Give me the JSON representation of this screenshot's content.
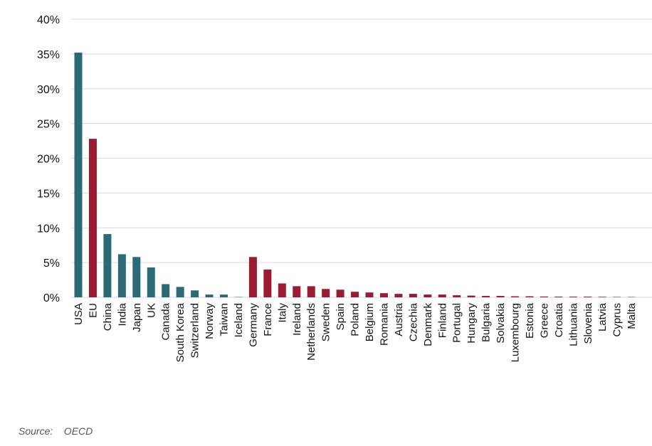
{
  "source": "Source:    OECD",
  "chart_data": {
    "type": "bar",
    "title": "",
    "xlabel": "",
    "ylabel": "",
    "ylim": [
      0,
      40
    ],
    "yticks": [
      0,
      5,
      10,
      15,
      20,
      25,
      30,
      35,
      40
    ],
    "ytick_format": "percent",
    "grid": true,
    "legend": "none",
    "colors": {
      "non_eu": "#2c6b76",
      "eu": "#9b1b30",
      "grid": "#d9d9d9"
    },
    "categories": [
      "USA",
      "EU",
      "China",
      "India",
      "Japan",
      "UK",
      "Canada",
      "South Korea",
      "Switzerland",
      "Norway",
      "Taiwan",
      "Iceland",
      "Germany",
      "France",
      "Italy",
      "Ireland",
      "Netherlands",
      "Sweden",
      "Spain",
      "Poland",
      "Belgium",
      "Romania",
      "Austria",
      "Czechia",
      "Denmark",
      "Finland",
      "Portugal",
      "Hungary",
      "Bulgaria",
      "Solvakia",
      "Luxembourg",
      "Estonia",
      "Greece",
      "Croatia",
      "Lithuania",
      "Slovenia",
      "Latvia",
      "Cyprus",
      "Malta"
    ],
    "values": [
      35.2,
      22.8,
      9.1,
      6.2,
      5.8,
      4.3,
      1.9,
      1.5,
      1.0,
      0.4,
      0.4,
      0.05,
      5.8,
      4.0,
      2.0,
      1.6,
      1.6,
      1.2,
      1.1,
      0.8,
      0.7,
      0.6,
      0.5,
      0.5,
      0.4,
      0.4,
      0.3,
      0.25,
      0.2,
      0.2,
      0.15,
      0.15,
      0.12,
      0.1,
      0.1,
      0.1,
      0.08,
      0.06,
      0.05
    ],
    "bar_groups": [
      "non_eu",
      "eu",
      "non_eu",
      "non_eu",
      "non_eu",
      "non_eu",
      "non_eu",
      "non_eu",
      "non_eu",
      "non_eu",
      "non_eu",
      "non_eu",
      "eu",
      "eu",
      "eu",
      "eu",
      "eu",
      "eu",
      "eu",
      "eu",
      "eu",
      "eu",
      "eu",
      "eu",
      "eu",
      "eu",
      "eu",
      "eu",
      "eu",
      "eu",
      "eu",
      "eu",
      "eu",
      "eu",
      "eu",
      "eu",
      "eu",
      "eu",
      "eu"
    ]
  }
}
